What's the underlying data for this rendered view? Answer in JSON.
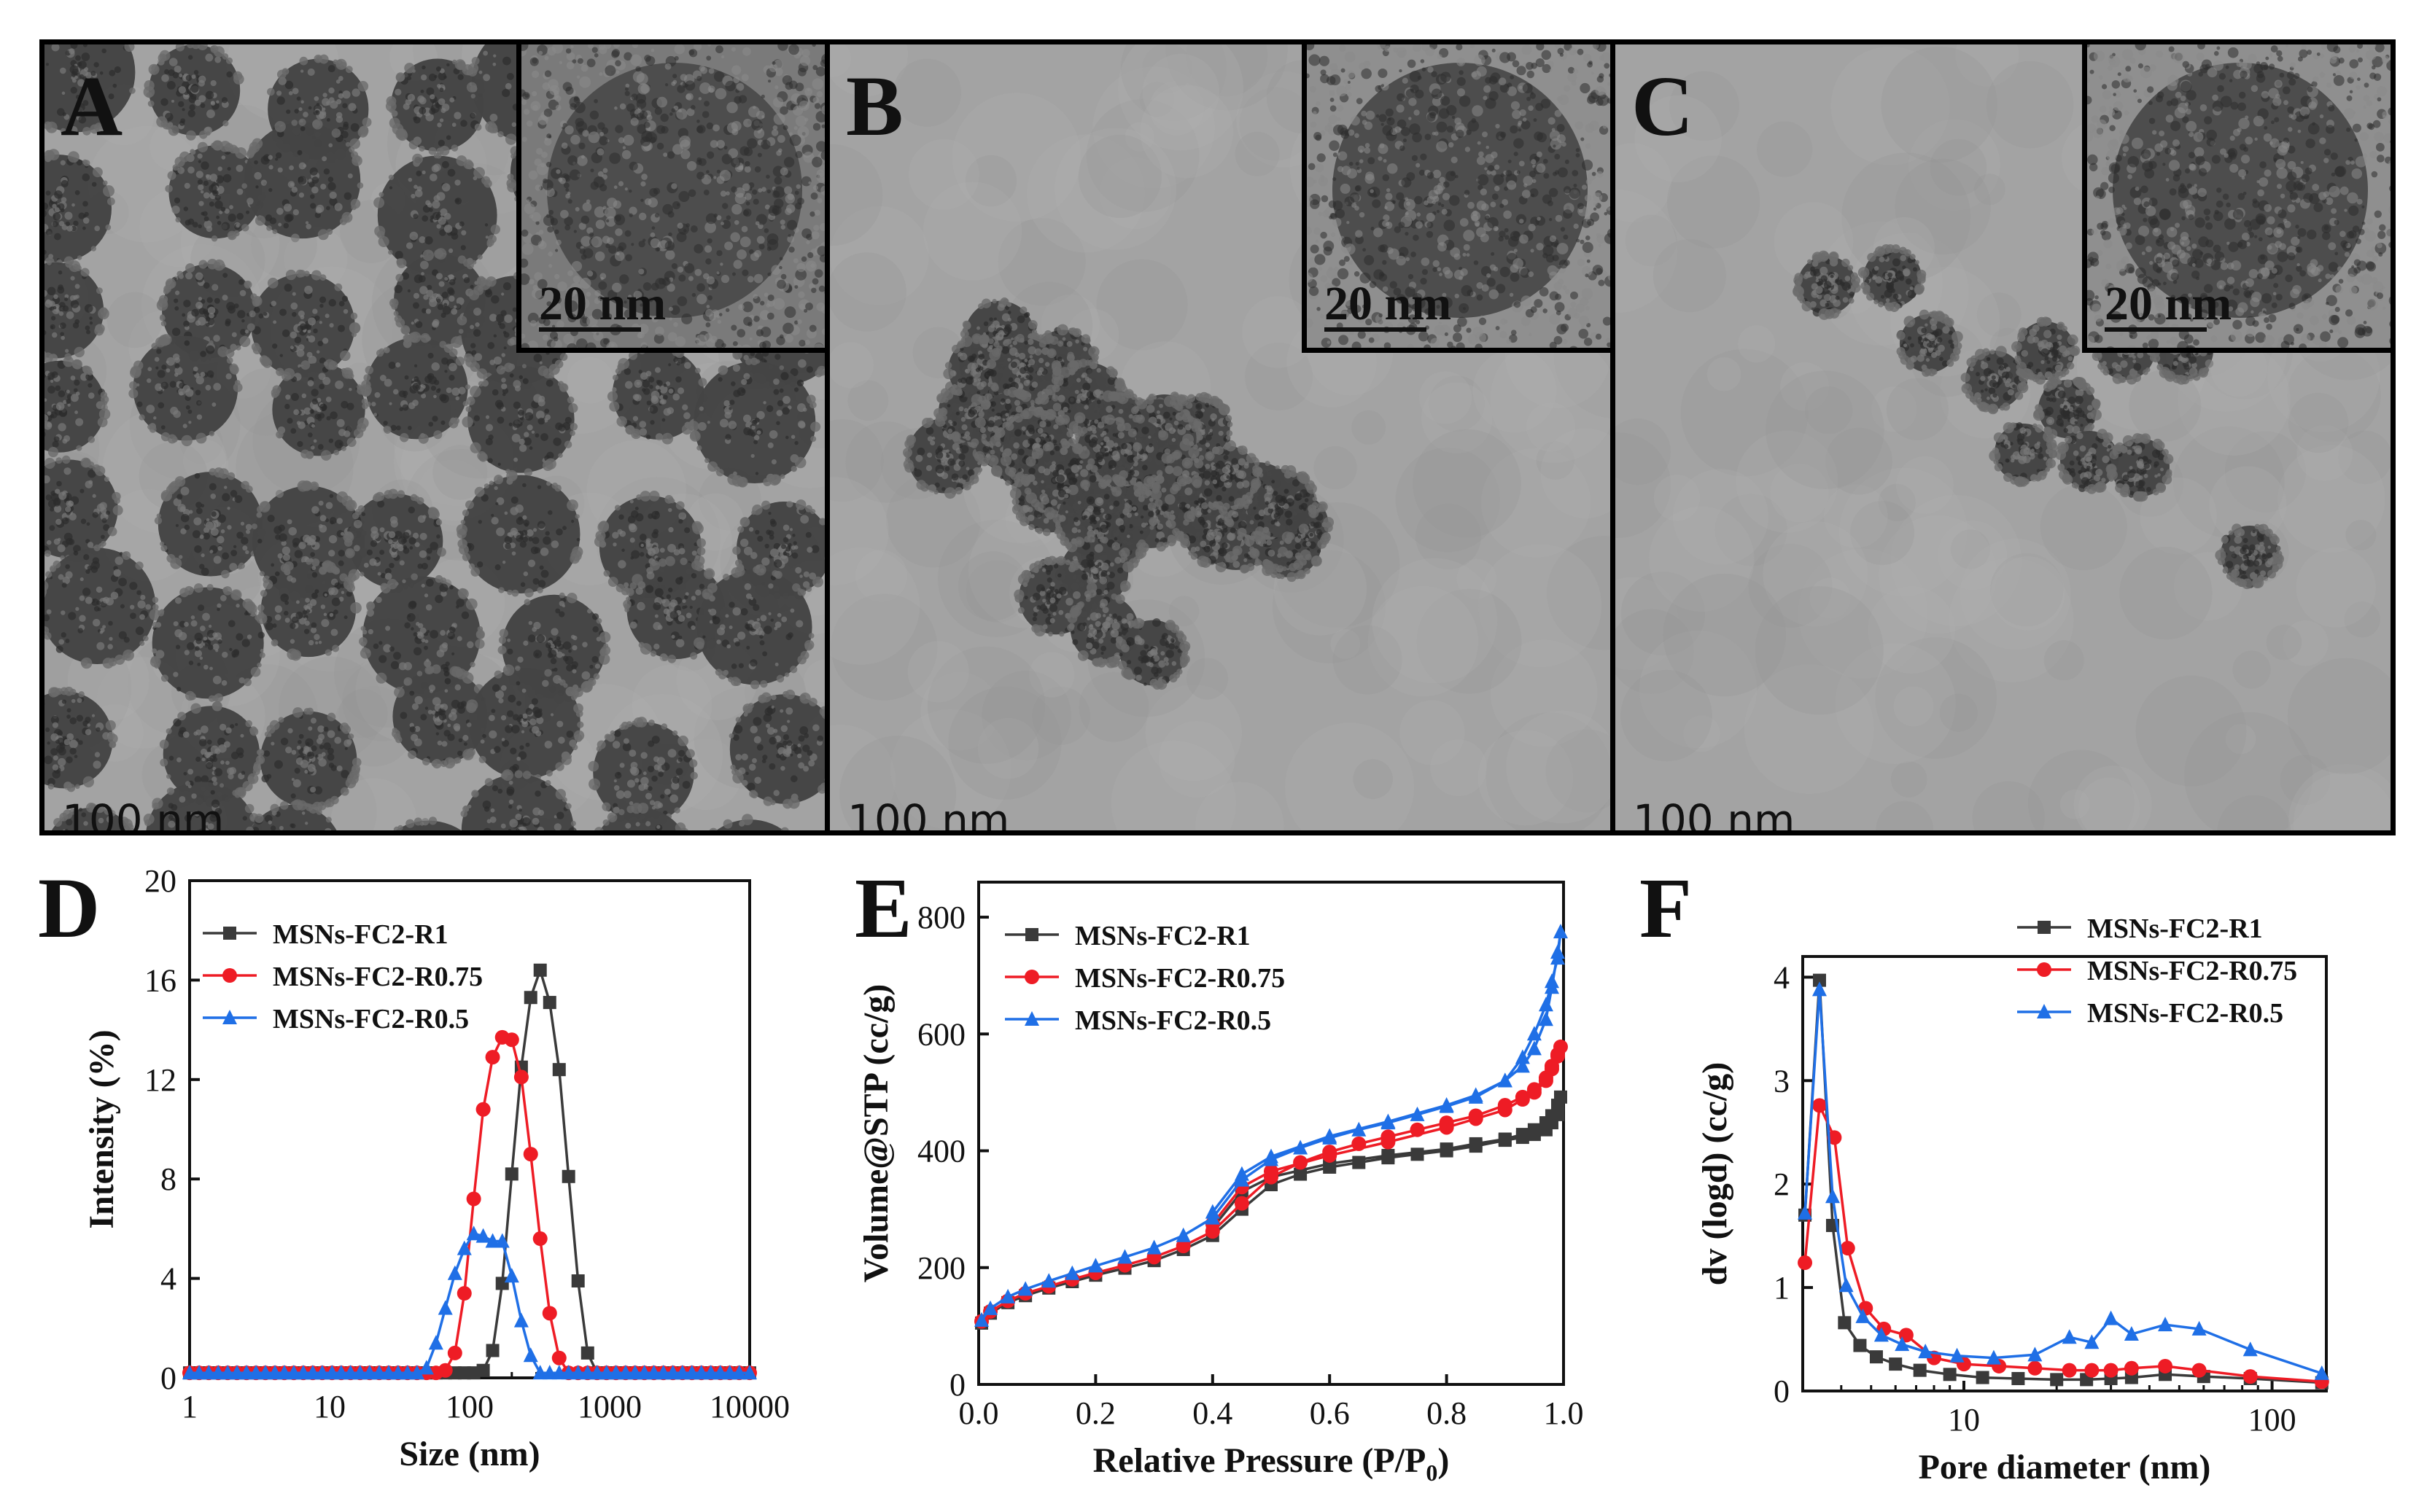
{
  "figure": {
    "panels": [
      {
        "id": "A",
        "letter": "A",
        "scale_main": "100 nm",
        "scale_inset": "20 nm",
        "particle_density": "high"
      },
      {
        "id": "B",
        "letter": "B",
        "scale_main": "100 nm",
        "scale_inset": "20 nm",
        "particle_density": "medium"
      },
      {
        "id": "C",
        "letter": "C",
        "scale_main": "100 nm",
        "scale_inset": "20 nm",
        "particle_density": "low"
      }
    ]
  },
  "colors": {
    "black_series": "#3a3a3a",
    "red_series": "#ee1c25",
    "blue_series": "#1f6fe6"
  },
  "chart_data": [
    {
      "id": "D",
      "letter": "D",
      "type": "line",
      "xscale": "log",
      "xlabel": "Size (nm)",
      "ylabel": "Intensity (%)",
      "xlim": [
        1,
        10000
      ],
      "ylim": [
        0,
        20
      ],
      "xticks": [
        1,
        10,
        100,
        1000,
        10000
      ],
      "xtick_labels": [
        "1",
        "10",
        "100",
        "1000",
        "10000"
      ],
      "yticks": [
        0,
        4,
        8,
        12,
        16,
        20
      ],
      "ytick_labels": [
        "0",
        "4",
        "8",
        "12",
        "16",
        "20"
      ],
      "legend": [
        "MSNs-FC2-R1",
        "MSNs-FC2-R0.75",
        "MSNs-FC2-R0.5"
      ],
      "series": [
        {
          "name": "MSNs-FC2-R1",
          "marker": "square",
          "color": "#3a3a3a",
          "x": [
            1,
            1.17,
            1.37,
            1.6,
            1.87,
            2.18,
            2.55,
            2.98,
            3.48,
            4.07,
            4.75,
            5.55,
            6.49,
            7.58,
            8.86,
            10.4,
            12.1,
            14.1,
            16.5,
            19.3,
            22.6,
            26.4,
            30.8,
            36,
            42.1,
            49.2,
            57.5,
            67.1,
            78.5,
            91.7,
            107,
            125,
            146,
            171,
            200,
            234,
            273,
            319,
            373,
            436,
            509,
            595,
            696,
            813,
            950,
            1110,
            1300,
            1520,
            1770,
            2070,
            2420,
            2830,
            3310,
            3870,
            4520,
            5280,
            6170,
            7210,
            8430,
            10000
          ],
          "y": [
            0.2,
            0.2,
            0.2,
            0.2,
            0.2,
            0.2,
            0.2,
            0.2,
            0.2,
            0.2,
            0.2,
            0.2,
            0.2,
            0.2,
            0.2,
            0.2,
            0.2,
            0.2,
            0.2,
            0.2,
            0.2,
            0.2,
            0.2,
            0.2,
            0.2,
            0.2,
            0.2,
            0.2,
            0.2,
            0.2,
            0.2,
            0.3,
            1.1,
            3.8,
            8.2,
            12.5,
            15.3,
            16.4,
            15.1,
            12.4,
            8.1,
            3.9,
            1.0,
            0.2,
            0.2,
            0.2,
            0.2,
            0.2,
            0.2,
            0.2,
            0.2,
            0.2,
            0.2,
            0.2,
            0.2,
            0.2,
            0.2,
            0.2,
            0.2,
            0.2
          ]
        },
        {
          "name": "MSNs-FC2-R0.75",
          "marker": "circle",
          "color": "#ee1c25",
          "x": [
            1,
            1.17,
            1.37,
            1.6,
            1.87,
            2.18,
            2.55,
            2.98,
            3.48,
            4.07,
            4.75,
            5.55,
            6.49,
            7.58,
            8.86,
            10.4,
            12.1,
            14.1,
            16.5,
            19.3,
            22.6,
            26.4,
            30.8,
            36,
            42.1,
            49.2,
            57.5,
            67.1,
            78.5,
            91.7,
            107,
            125,
            146,
            171,
            200,
            234,
            273,
            319,
            373,
            436,
            509,
            595,
            696,
            813,
            950,
            1110,
            1300,
            1520,
            1770,
            2070,
            2420,
            2830,
            3310,
            3870,
            4520,
            5280,
            6170,
            7210,
            8430,
            10000
          ],
          "y": [
            0.2,
            0.2,
            0.2,
            0.2,
            0.2,
            0.2,
            0.2,
            0.2,
            0.2,
            0.2,
            0.2,
            0.2,
            0.2,
            0.2,
            0.2,
            0.2,
            0.2,
            0.2,
            0.2,
            0.2,
            0.2,
            0.2,
            0.2,
            0.2,
            0.2,
            0.2,
            0.2,
            0.3,
            1.0,
            3.4,
            7.2,
            10.8,
            12.9,
            13.7,
            13.6,
            12.1,
            9.0,
            5.6,
            2.6,
            0.8,
            0.2,
            0.2,
            0.2,
            0.2,
            0.2,
            0.2,
            0.2,
            0.2,
            0.2,
            0.2,
            0.2,
            0.2,
            0.2,
            0.2,
            0.2,
            0.2,
            0.2,
            0.2,
            0.2,
            0.2
          ]
        },
        {
          "name": "MSNs-FC2-R0.5",
          "marker": "triangle",
          "color": "#1f6fe6",
          "x": [
            1,
            1.17,
            1.37,
            1.6,
            1.87,
            2.18,
            2.55,
            2.98,
            3.48,
            4.07,
            4.75,
            5.55,
            6.49,
            7.58,
            8.86,
            10.4,
            12.1,
            14.1,
            16.5,
            19.3,
            22.6,
            26.4,
            30.8,
            36,
            42.1,
            49.2,
            57.5,
            67.1,
            78.5,
            91.7,
            107,
            125,
            146,
            171,
            200,
            234,
            273,
            319,
            373,
            436,
            509,
            595,
            696,
            813,
            950,
            1110,
            1300,
            1520,
            1770,
            2070,
            2420,
            2830,
            3310,
            3870,
            4520,
            5280,
            6170,
            7210,
            8430,
            10000
          ],
          "y": [
            0.2,
            0.2,
            0.2,
            0.2,
            0.2,
            0.2,
            0.2,
            0.2,
            0.2,
            0.2,
            0.2,
            0.2,
            0.2,
            0.2,
            0.2,
            0.2,
            0.2,
            0.2,
            0.2,
            0.2,
            0.2,
            0.2,
            0.2,
            0.2,
            0.2,
            0.4,
            1.4,
            2.8,
            4.2,
            5.2,
            5.8,
            5.7,
            5.5,
            5.5,
            4.1,
            2.3,
            0.9,
            0.2,
            0.2,
            0.2,
            0.2,
            0.2,
            0.2,
            0.2,
            0.2,
            0.2,
            0.2,
            0.2,
            0.2,
            0.2,
            0.2,
            0.2,
            0.2,
            0.2,
            0.2,
            0.2,
            0.2,
            0.2,
            0.2,
            0.2
          ]
        }
      ]
    },
    {
      "id": "E",
      "letter": "E",
      "type": "line",
      "xscale": "linear",
      "xlabel": "Relative Pressure (P/P",
      "xlabel_sub": "0",
      "xlabel_end": ")",
      "ylabel": "Volume@STP (cc/g)",
      "xlim": [
        0,
        1
      ],
      "ylim": [
        0,
        860
      ],
      "xticks": [
        0,
        0.2,
        0.4,
        0.6,
        0.8,
        1.0
      ],
      "xtick_labels": [
        "0.0",
        "0.2",
        "0.4",
        "0.6",
        "0.8",
        "1.0"
      ],
      "yticks": [
        0,
        200,
        400,
        600,
        800
      ],
      "ytick_labels": [
        "0",
        "200",
        "400",
        "600",
        "800"
      ],
      "legend": [
        "MSNs-FC2-R1",
        "MSNs-FC2-R0.75",
        "MSNs-FC2-R0.5"
      ],
      "series": [
        {
          "name": "MSNs-FC2-R1",
          "marker": "square",
          "color": "#3a3a3a",
          "x": [
            0.005,
            0.02,
            0.05,
            0.08,
            0.12,
            0.16,
            0.2,
            0.25,
            0.3,
            0.35,
            0.4,
            0.45,
            0.5,
            0.55,
            0.6,
            0.65,
            0.7,
            0.75,
            0.8,
            0.85,
            0.9,
            0.93,
            0.95,
            0.97,
            0.98,
            0.99,
            0.995,
            0.99,
            0.98,
            0.97,
            0.95,
            0.93,
            0.9,
            0.85,
            0.8,
            0.7,
            0.6,
            0.5,
            0.45,
            0.4
          ],
          "y": [
            105,
            122,
            140,
            152,
            165,
            176,
            187,
            199,
            212,
            231,
            255,
            300,
            342,
            360,
            372,
            380,
            388,
            394,
            400,
            408,
            418,
            423,
            428,
            436,
            448,
            462,
            492,
            478,
            460,
            448,
            436,
            428,
            420,
            412,
            403,
            392,
            378,
            355,
            330,
            268
          ]
        },
        {
          "name": "MSNs-FC2-R0.75",
          "marker": "circle",
          "color": "#ee1c25",
          "x": [
            0.005,
            0.02,
            0.05,
            0.08,
            0.12,
            0.16,
            0.2,
            0.25,
            0.3,
            0.35,
            0.4,
            0.45,
            0.5,
            0.55,
            0.6,
            0.65,
            0.7,
            0.75,
            0.8,
            0.85,
            0.9,
            0.93,
            0.95,
            0.97,
            0.98,
            0.99,
            0.995,
            0.99,
            0.98,
            0.97,
            0.95,
            0.93,
            0.9,
            0.85,
            0.8,
            0.7,
            0.6,
            0.5,
            0.45,
            0.4
          ],
          "y": [
            108,
            125,
            143,
            156,
            168,
            180,
            191,
            204,
            218,
            237,
            262,
            310,
            355,
            380,
            398,
            412,
            424,
            436,
            448,
            460,
            478,
            492,
            505,
            525,
            545,
            565,
            578,
            562,
            540,
            520,
            500,
            488,
            470,
            455,
            440,
            415,
            392,
            365,
            338,
            275
          ]
        },
        {
          "name": "MSNs-FC2-R0.5",
          "marker": "triangle",
          "color": "#1f6fe6",
          "x": [
            0.005,
            0.02,
            0.05,
            0.08,
            0.12,
            0.16,
            0.2,
            0.25,
            0.3,
            0.35,
            0.4,
            0.45,
            0.5,
            0.55,
            0.6,
            0.65,
            0.7,
            0.75,
            0.8,
            0.85,
            0.9,
            0.93,
            0.95,
            0.97,
            0.98,
            0.99,
            0.995,
            0.99,
            0.98,
            0.97,
            0.95,
            0.93,
            0.9,
            0.85,
            0.8,
            0.7,
            0.6,
            0.5,
            0.45,
            0.4
          ],
          "y": [
            110,
            130,
            150,
            163,
            177,
            190,
            203,
            218,
            234,
            255,
            285,
            350,
            385,
            405,
            422,
            436,
            448,
            462,
            476,
            492,
            520,
            545,
            575,
            625,
            680,
            740,
            775,
            730,
            690,
            650,
            600,
            560,
            520,
            495,
            478,
            450,
            425,
            390,
            360,
            295
          ]
        }
      ]
    },
    {
      "id": "F",
      "letter": "F",
      "type": "line",
      "xscale": "log",
      "xlabel": "Pore diameter (nm)",
      "ylabel": "dv (logd) (cc/g)",
      "xlim": [
        3,
        150
      ],
      "ylim": [
        0,
        4.2
      ],
      "xticks": [
        10,
        100
      ],
      "xtick_labels": [
        "10",
        "100"
      ],
      "yticks": [
        0,
        1,
        2,
        3,
        4
      ],
      "ytick_labels": [
        "0",
        "1",
        "2",
        "3",
        "4"
      ],
      "legend": [
        "MSNs-FC2-R1",
        "MSNs-FC2-R0.75",
        "MSNs-FC2-R0.5"
      ],
      "series": [
        {
          "name": "MSNs-FC2-R1",
          "marker": "square",
          "color": "#3a3a3a",
          "x": [
            3.05,
            3.4,
            3.75,
            4.1,
            4.6,
            5.2,
            6,
            7.2,
            9,
            11.5,
            15,
            20,
            25,
            30,
            35,
            45,
            60,
            85,
            145
          ],
          "y": [
            1.7,
            3.97,
            1.6,
            0.66,
            0.44,
            0.33,
            0.26,
            0.2,
            0.16,
            0.13,
            0.12,
            0.11,
            0.11,
            0.12,
            0.13,
            0.16,
            0.14,
            0.12,
            0.08
          ]
        },
        {
          "name": "MSNs-FC2-R0.75",
          "marker": "circle",
          "color": "#ee1c25",
          "x": [
            3.05,
            3.4,
            3.8,
            4.2,
            4.8,
            5.5,
            6.5,
            8,
            10,
            13,
            17,
            22,
            26,
            30,
            35,
            45,
            58,
            85,
            145
          ],
          "y": [
            1.24,
            2.76,
            2.45,
            1.38,
            0.8,
            0.6,
            0.54,
            0.32,
            0.26,
            0.24,
            0.22,
            0.2,
            0.2,
            0.2,
            0.22,
            0.24,
            0.2,
            0.14,
            0.09
          ]
        },
        {
          "name": "MSNs-FC2-R0.5",
          "marker": "triangle",
          "color": "#1f6fe6",
          "x": [
            3.05,
            3.4,
            3.75,
            4.15,
            4.7,
            5.4,
            6.3,
            7.5,
            9.5,
            12.5,
            17,
            22,
            26,
            30,
            35,
            45,
            58,
            85,
            145
          ],
          "y": [
            1.72,
            3.88,
            1.88,
            1.02,
            0.72,
            0.54,
            0.45,
            0.38,
            0.34,
            0.32,
            0.35,
            0.52,
            0.47,
            0.7,
            0.55,
            0.64,
            0.6,
            0.4,
            0.17
          ]
        }
      ]
    }
  ]
}
